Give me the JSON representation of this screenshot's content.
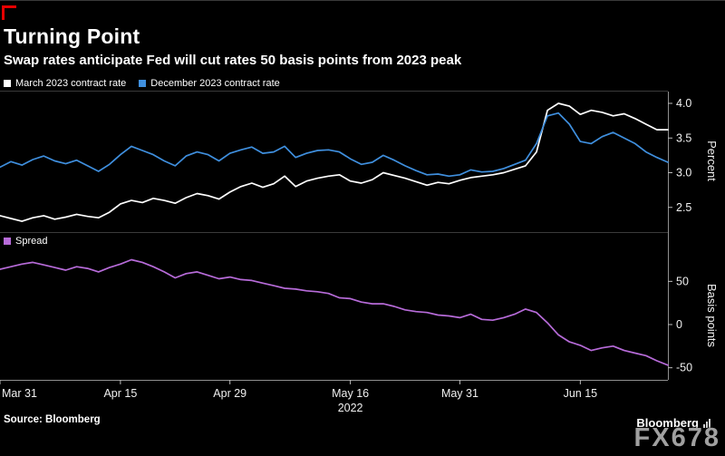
{
  "header": {
    "title": "Turning Point",
    "subtitle": "Swap rates anticipate Fed will cut rates 50 basis points from 2023 peak"
  },
  "footer": {
    "source": "Source: Bloomberg",
    "logo": "Bloomberg",
    "watermark": "FX678"
  },
  "colors": {
    "background": "#000000",
    "accent_red": "#e60000",
    "axis": "#8f8f8f",
    "divider": "#3a3a3a",
    "tick_text": "#f0f0f0"
  },
  "chart_data": {
    "type": "line",
    "grid": false,
    "legend_position": "top-left-per-panel",
    "n": 62,
    "x_ticks": [
      {
        "label": "Mar 31",
        "i": 0
      },
      {
        "label": "Apr 15",
        "i": 11
      },
      {
        "label": "Apr 29",
        "i": 21
      },
      {
        "label": "May 16",
        "i": 32
      },
      {
        "label": "May 31",
        "i": 42
      },
      {
        "label": "Jun 15",
        "i": 53
      }
    ],
    "year_label": {
      "text": "2022",
      "i": 32
    },
    "panels": [
      {
        "ylabel": "Percent",
        "ylim": [
          2.17,
          4.17
        ],
        "yticks": [
          2.5,
          3.0,
          3.5,
          4.0
        ],
        "decimals": 1,
        "series": [
          {
            "name": "March 2023 contract rate",
            "color": "#ffffff",
            "values": [
              2.38,
              2.34,
              2.3,
              2.35,
              2.38,
              2.33,
              2.36,
              2.4,
              2.37,
              2.35,
              2.43,
              2.55,
              2.6,
              2.57,
              2.63,
              2.6,
              2.56,
              2.64,
              2.7,
              2.67,
              2.62,
              2.72,
              2.8,
              2.85,
              2.79,
              2.84,
              2.95,
              2.8,
              2.88,
              2.92,
              2.95,
              2.97,
              2.88,
              2.85,
              2.9,
              3.0,
              2.96,
              2.92,
              2.87,
              2.82,
              2.86,
              2.84,
              2.89,
              2.93,
              2.95,
              2.97,
              3.0,
              3.05,
              3.1,
              3.3,
              3.9,
              4.0,
              3.96,
              3.84,
              3.9,
              3.87,
              3.82,
              3.85,
              3.78,
              3.7,
              3.62,
              3.62
            ]
          },
          {
            "name": "December 2023 contract rate",
            "color": "#3f8fde",
            "values": [
              3.08,
              3.16,
              3.11,
              3.19,
              3.24,
              3.17,
              3.13,
              3.18,
              3.1,
              3.02,
              3.12,
              3.26,
              3.38,
              3.32,
              3.26,
              3.17,
              3.1,
              3.24,
              3.3,
              3.26,
              3.17,
              3.28,
              3.33,
              3.37,
              3.28,
              3.3,
              3.38,
              3.22,
              3.28,
              3.32,
              3.33,
              3.3,
              3.2,
              3.12,
              3.15,
              3.25,
              3.18,
              3.1,
              3.03,
              2.97,
              2.98,
              2.95,
              2.97,
              3.04,
              3.01,
              3.02,
              3.06,
              3.12,
              3.18,
              3.42,
              3.82,
              3.86,
              3.7,
              3.45,
              3.42,
              3.52,
              3.58,
              3.5,
              3.42,
              3.3,
              3.22,
              3.15
            ]
          }
        ]
      },
      {
        "ylabel": "Basis points",
        "ylim": [
          -64,
          85
        ],
        "yticks": [
          -50,
          0,
          50
        ],
        "decimals": 0,
        "series": [
          {
            "name": "Spread",
            "color": "#b76bd9",
            "values": [
              64,
              67,
              70,
              72,
              69,
              66,
              63,
              67,
              65,
              61,
              66,
              70,
              75,
              72,
              67,
              61,
              54,
              59,
              61,
              57,
              53,
              55,
              52,
              51,
              48,
              45,
              42,
              41,
              39,
              38,
              36,
              31,
              30,
              26,
              24,
              24,
              21,
              17,
              15,
              14,
              11,
              10,
              8,
              12,
              6,
              5,
              8,
              12,
              18,
              14,
              2,
              -12,
              -20,
              -24,
              -30,
              -27,
              -25,
              -30,
              -33,
              -36,
              -42,
              -47
            ]
          }
        ]
      }
    ]
  }
}
